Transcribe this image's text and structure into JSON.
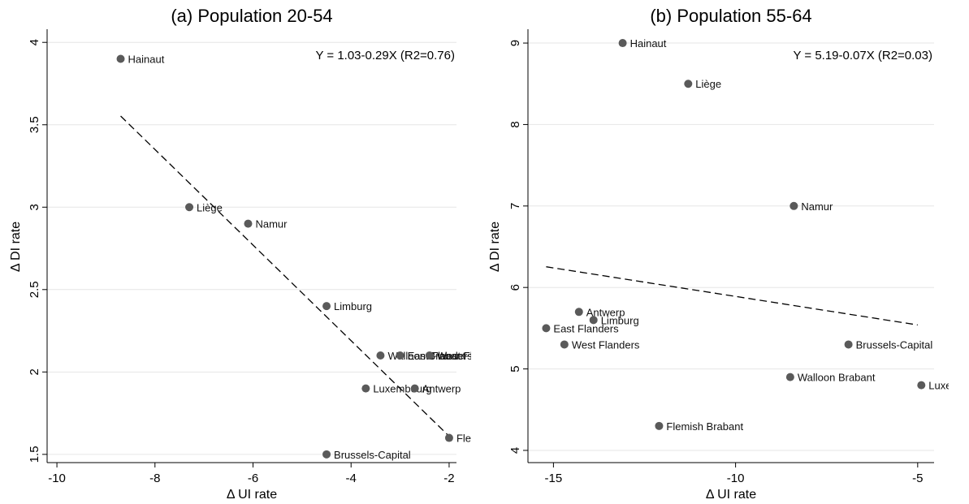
{
  "chart_data": [
    {
      "type": "scatter",
      "title": "(a) Population 20-54",
      "xlabel": "Δ UI rate",
      "ylabel": "Δ DI rate",
      "xlim": [
        -10.2,
        -1.85
      ],
      "ylim": [
        1.45,
        4.07
      ],
      "xticks": [
        -10,
        -8,
        -6,
        -4,
        -2
      ],
      "xtick_labels": [
        "-10",
        "-8",
        "-6",
        "-4",
        "-2"
      ],
      "yticks": [
        1.5,
        2,
        2.5,
        3,
        3.5,
        4
      ],
      "ytick_labels": [
        "1.5",
        "2",
        "2.5",
        "3",
        "3.5",
        "4"
      ],
      "grid": "horizontal",
      "equation": "Y = 1.03-0.29X (R2=0.76)",
      "fit": {
        "intercept": 1.03,
        "slope": -0.29,
        "x_range": [
          -8.7,
          -2
        ]
      },
      "points": [
        {
          "label": "Hainaut",
          "x": -8.7,
          "y": 3.9
        },
        {
          "label": "Liège",
          "x": -7.3,
          "y": 3.0
        },
        {
          "label": "Namur",
          "x": -6.1,
          "y": 2.9
        },
        {
          "label": "Limburg",
          "x": -4.5,
          "y": 2.4
        },
        {
          "label": "Walloon Brabant",
          "x": -3.4,
          "y": 2.1
        },
        {
          "label": "East Flanders",
          "x": -3.0,
          "y": 2.1
        },
        {
          "label": "West Flanders",
          "x": -2.4,
          "y": 2.1
        },
        {
          "label": "Luxembourg",
          "x": -3.7,
          "y": 1.9
        },
        {
          "label": "Antwerp",
          "x": -2.7,
          "y": 1.9
        },
        {
          "label": "Flemish Brabant",
          "x": -2.0,
          "y": 1.6
        },
        {
          "label": "Brussels-Capital",
          "x": -4.5,
          "y": 1.5
        }
      ]
    },
    {
      "type": "scatter",
      "title": "(b) Population 55-64",
      "xlabel": "Δ UI rate",
      "ylabel": "Δ DI rate",
      "xlim": [
        -15.7,
        -4.55
      ],
      "ylim": [
        3.85,
        9.15
      ],
      "xticks": [
        -15,
        -10,
        -5
      ],
      "xtick_labels": [
        "-15",
        "-10",
        "-5"
      ],
      "yticks": [
        4,
        5,
        6,
        7,
        8,
        9
      ],
      "ytick_labels": [
        "4",
        "5",
        "6",
        "7",
        "8",
        "9"
      ],
      "grid": "horizontal",
      "equation": "Y = 5.19-0.07X (R2=0.03)",
      "fit": {
        "intercept": 5.19,
        "slope": -0.07,
        "x_range": [
          -15.2,
          -5
        ]
      },
      "points": [
        {
          "label": "Hainaut",
          "x": -13.1,
          "y": 9.0
        },
        {
          "label": "Liège",
          "x": -11.3,
          "y": 8.5
        },
        {
          "label": "Namur",
          "x": -8.4,
          "y": 7.0
        },
        {
          "label": "Antwerp",
          "x": -14.3,
          "y": 5.7
        },
        {
          "label": "Limburg",
          "x": -13.9,
          "y": 5.6
        },
        {
          "label": "East Flanders",
          "x": -15.2,
          "y": 5.5
        },
        {
          "label": "West Flanders",
          "x": -14.7,
          "y": 5.3
        },
        {
          "label": "Brussels-Capital",
          "x": -6.9,
          "y": 5.3
        },
        {
          "label": "Walloon Brabant",
          "x": -8.5,
          "y": 4.9
        },
        {
          "label": "Luxembourg",
          "x": -4.9,
          "y": 4.8
        },
        {
          "label": "Flemish Brabant",
          "x": -12.1,
          "y": 4.3
        }
      ]
    }
  ]
}
